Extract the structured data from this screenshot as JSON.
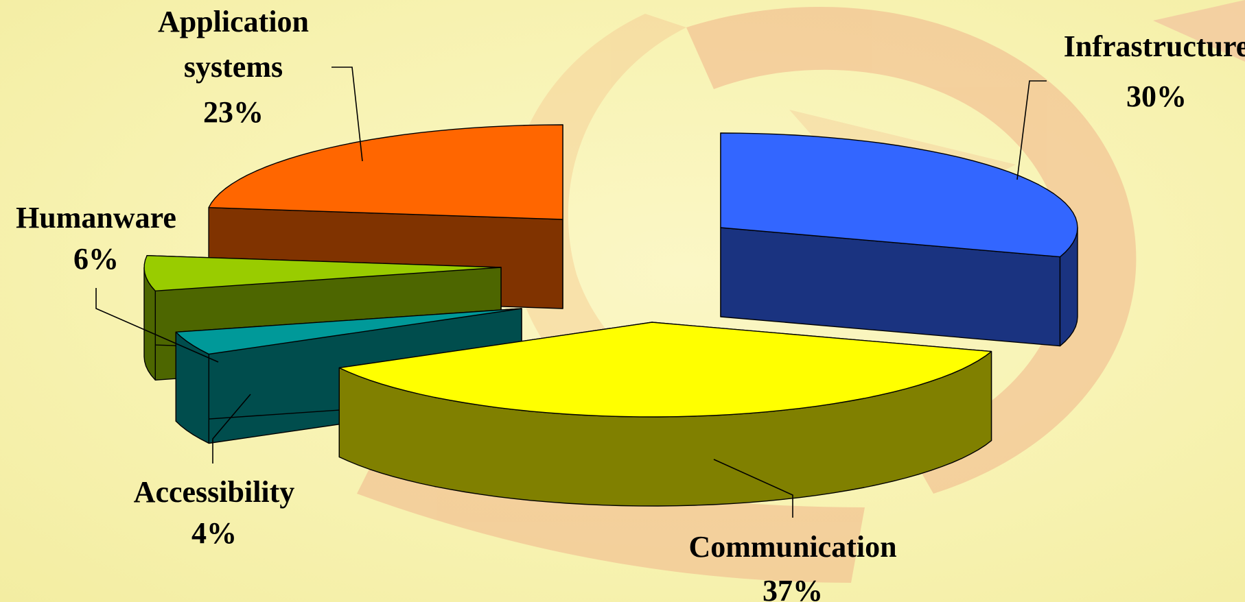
{
  "chart_data": {
    "type": "pie",
    "style": "3d-exploded",
    "slices": [
      {
        "name": "Infrastructure",
        "value": 30,
        "label": "30%",
        "color": "#3366ff",
        "side": "#1a3380"
      },
      {
        "name": "Communication",
        "value": 37,
        "label": "37%",
        "color": "#ffff00",
        "side": "#808000"
      },
      {
        "name": "Accessibility",
        "value": 4,
        "label": "4%",
        "color": "#009999",
        "side": "#004d4d"
      },
      {
        "name": "Humanware",
        "value": 6,
        "label": "6%",
        "color": "#99cc00",
        "side": "#4d6600"
      },
      {
        "name": "Application systems",
        "value": 23,
        "label": "23%",
        "color": "#ff6600",
        "side": "#803300"
      }
    ],
    "legend": "none",
    "labels": {
      "infrastructure": [
        "Infrastructure",
        "30%"
      ],
      "communication": [
        "Communication",
        "37%"
      ],
      "accessibility": [
        "Accessibility",
        "4%"
      ],
      "humanware": [
        "Humanware",
        "6%"
      ],
      "application": [
        "Application",
        "systems",
        "23%"
      ]
    }
  },
  "background": {
    "watermark": "logo-swirl",
    "colors": [
      "#f8f3b8",
      "#f6cf98"
    ]
  }
}
